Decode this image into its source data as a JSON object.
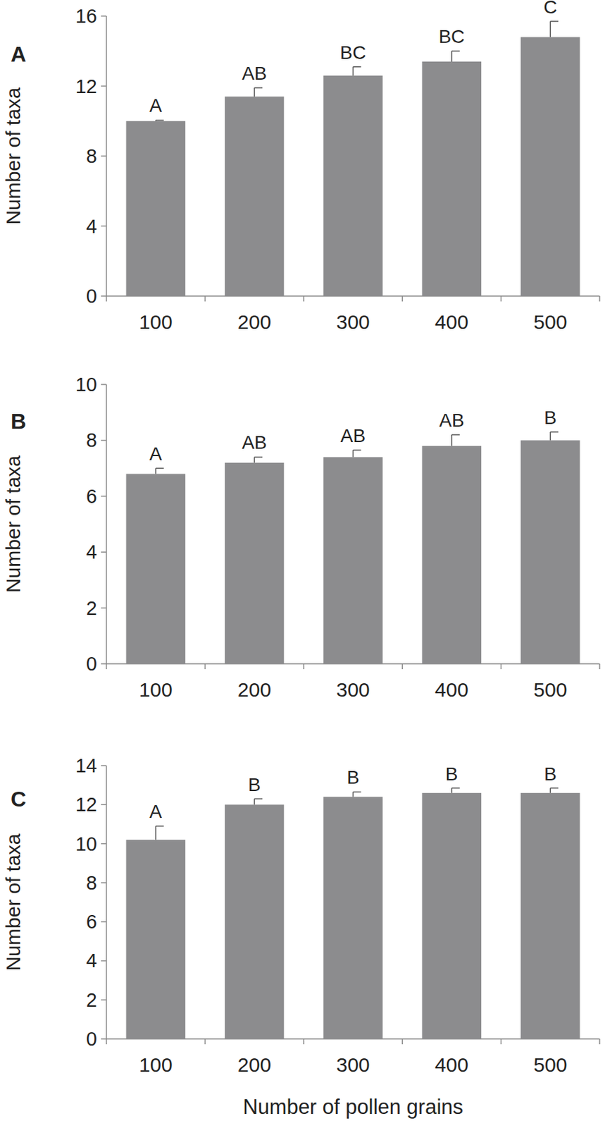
{
  "chart_data": [
    {
      "type": "bar",
      "title": "A",
      "y_label": "Number of taxa",
      "categories": [
        "100",
        "200",
        "300",
        "400",
        "500"
      ],
      "values": [
        10.0,
        11.4,
        12.6,
        13.4,
        14.8
      ],
      "errors": [
        0.05,
        0.5,
        0.5,
        0.6,
        0.9
      ],
      "annotations": [
        "A",
        "AB",
        "BC",
        "BC",
        "C"
      ],
      "color": "#8c8c8e",
      "ylim": [
        0,
        16
      ],
      "yticks": [
        0,
        4,
        8,
        12,
        16
      ],
      "grid": false
    },
    {
      "type": "bar",
      "title": "B",
      "y_label": "Number of taxa",
      "categories": [
        "100",
        "200",
        "300",
        "400",
        "500"
      ],
      "values": [
        6.8,
        7.2,
        7.4,
        7.8,
        8.0
      ],
      "errors": [
        0.2,
        0.2,
        0.25,
        0.4,
        0.3
      ],
      "annotations": [
        "A",
        "AB",
        "AB",
        "AB",
        "B"
      ],
      "color": "#8c8c8e",
      "ylim": [
        0,
        10
      ],
      "yticks": [
        0,
        2,
        4,
        6,
        8,
        10
      ],
      "grid": false
    },
    {
      "type": "bar",
      "title": "C",
      "y_label": "Number of taxa",
      "x_label": "Number of pollen grains",
      "categories": [
        "100",
        "200",
        "300",
        "400",
        "500"
      ],
      "values": [
        10.2,
        12.0,
        12.4,
        12.6,
        12.6
      ],
      "errors": [
        0.7,
        0.3,
        0.25,
        0.25,
        0.25
      ],
      "annotations": [
        "A",
        "B",
        "B",
        "B",
        "B"
      ],
      "color": "#8c8c8e",
      "ylim": [
        0,
        14
      ],
      "yticks": [
        0,
        2,
        4,
        6,
        8,
        10,
        12,
        14
      ],
      "grid": false
    }
  ]
}
